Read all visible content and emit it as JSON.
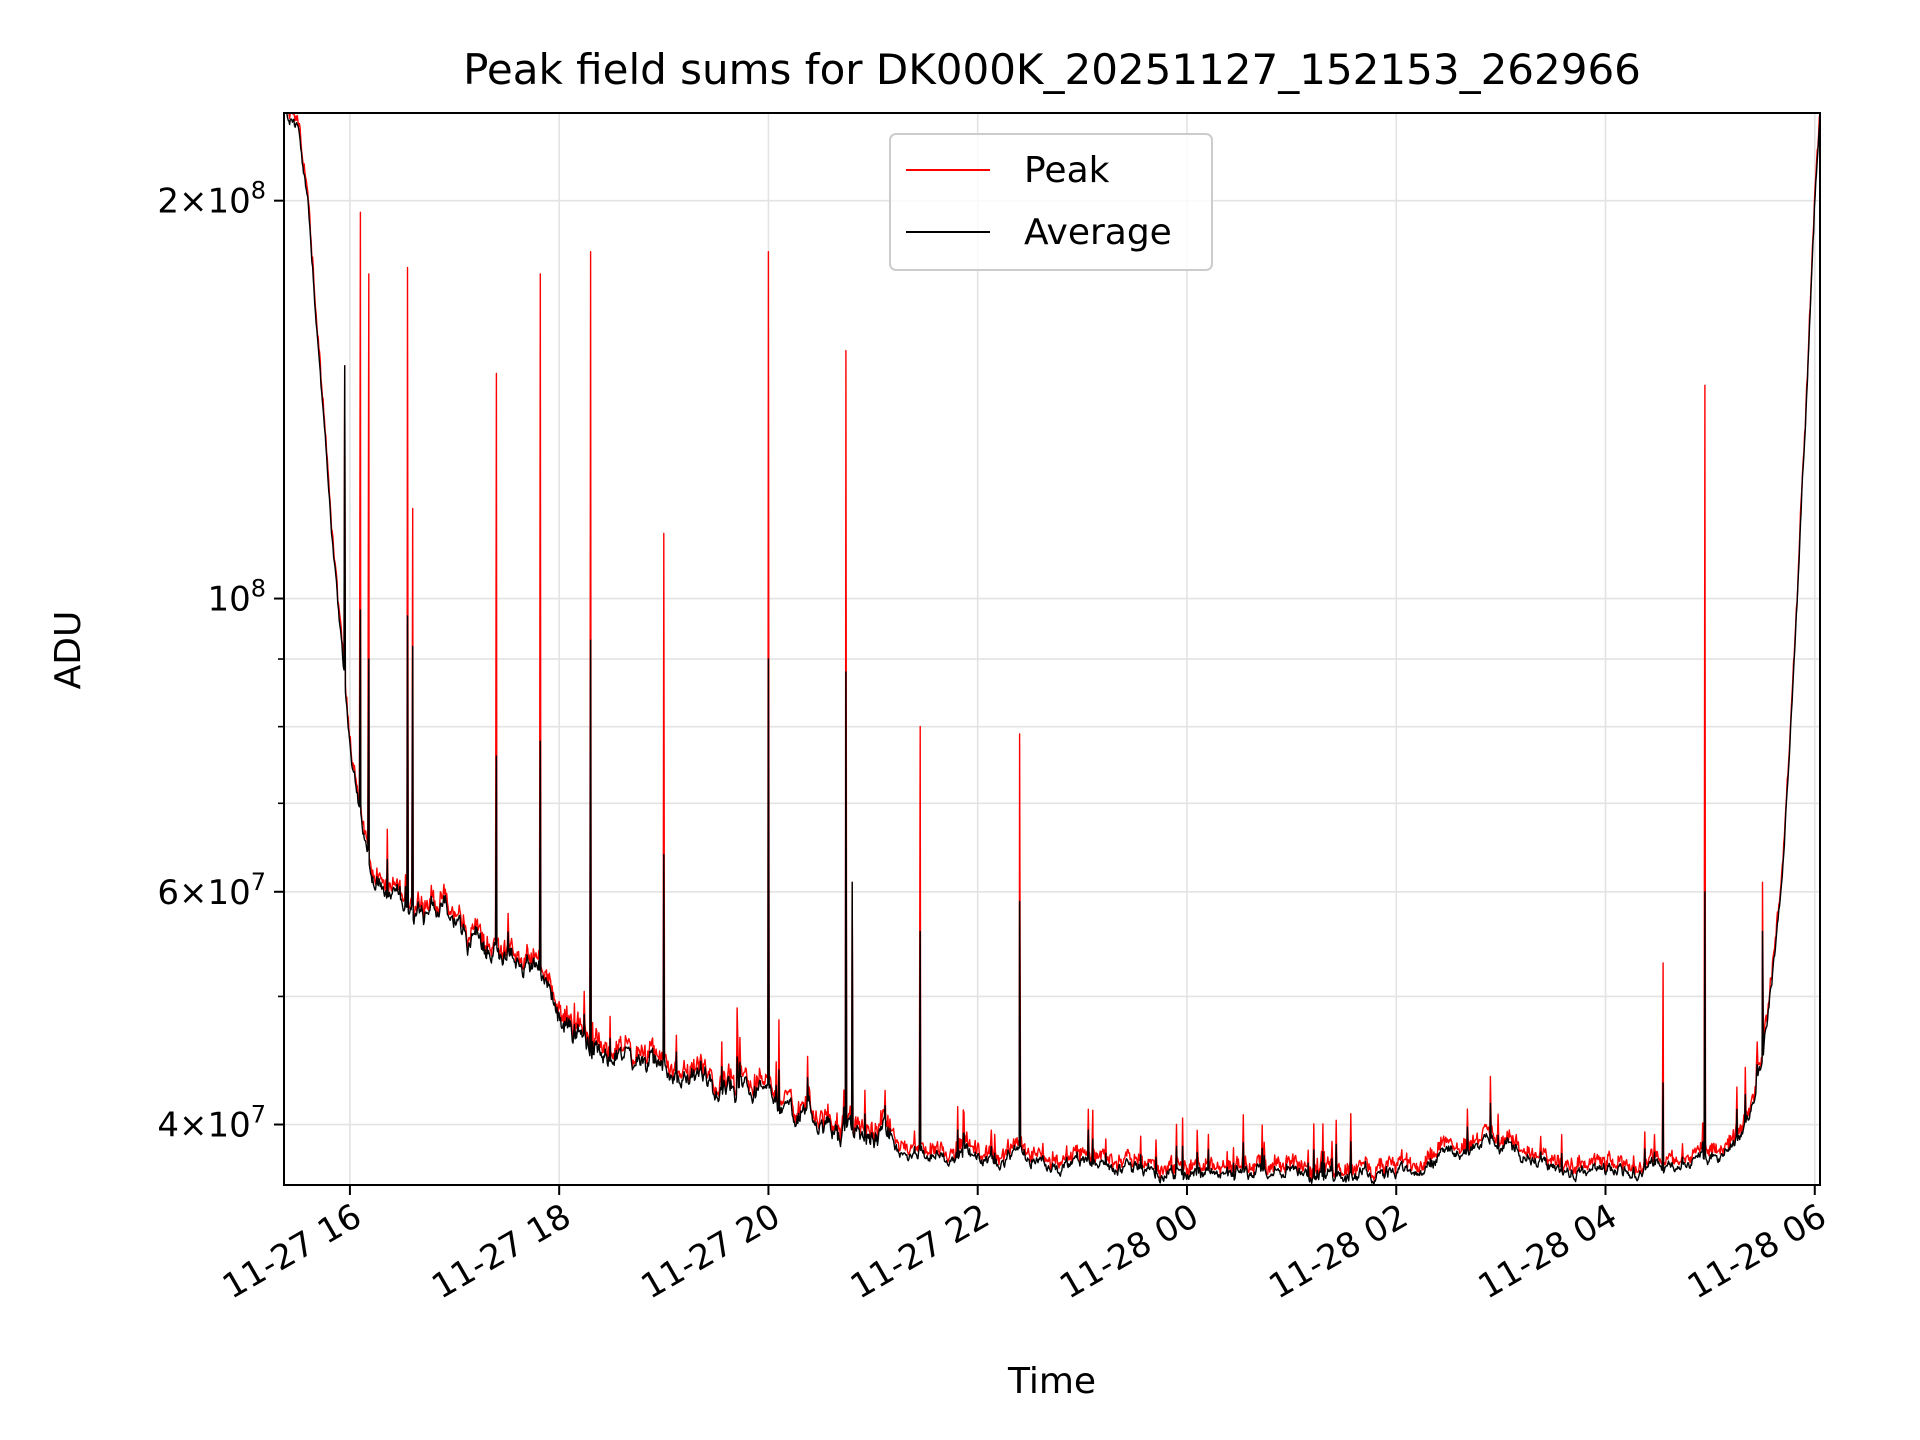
{
  "chart_data": {
    "type": "line",
    "title": "Peak field sums for DK000K_20251127_152153_262966",
    "xlabel": "Time",
    "ylabel": "ADU",
    "yscale": "log",
    "grid": true,
    "legend_position": "top-center",
    "xlim": [
      15.37,
      30.05
    ],
    "ylim": [
      36000000,
      233000000
    ],
    "x_ticks": [
      {
        "value": 16,
        "label": "11-27 16"
      },
      {
        "value": 18,
        "label": "11-27 18"
      },
      {
        "value": 20,
        "label": "11-27 20"
      },
      {
        "value": 22,
        "label": "11-27 22"
      },
      {
        "value": 24,
        "label": "11-28 00"
      },
      {
        "value": 26,
        "label": "11-28 02"
      },
      {
        "value": 28,
        "label": "11-28 04"
      },
      {
        "value": 30,
        "label": "11-28 06"
      }
    ],
    "y_ticks": [
      {
        "value": 40000000,
        "mant": "4",
        "exp": "7"
      },
      {
        "value": 60000000,
        "mant": "6",
        "exp": "7"
      },
      {
        "value": 100000000,
        "mant": "",
        "exp": "8"
      },
      {
        "value": 200000000,
        "mant": "2",
        "exp": "8"
      }
    ],
    "y_minor_ticks": [
      50000000,
      70000000,
      80000000,
      90000000
    ],
    "x_unit_note": "hours since 2025-11-27 00:00",
    "baseline": [
      [
        15.37,
        233000000
      ],
      [
        15.5,
        228000000
      ],
      [
        15.6,
        200000000
      ],
      [
        15.7,
        155000000
      ],
      [
        15.8,
        120000000
      ],
      [
        15.9,
        95000000
      ],
      [
        16.0,
        78000000
      ],
      [
        16.1,
        68000000
      ],
      [
        16.2,
        62000000
      ],
      [
        16.3,
        60000000
      ],
      [
        16.5,
        59000000
      ],
      [
        16.8,
        58500000
      ],
      [
        17.0,
        57000000
      ],
      [
        17.2,
        55000000
      ],
      [
        17.4,
        54000000
      ],
      [
        17.6,
        53000000
      ],
      [
        17.8,
        53000000
      ],
      [
        17.9,
        51500000
      ],
      [
        18.0,
        48000000
      ],
      [
        18.3,
        46000000
      ],
      [
        18.6,
        45000000
      ],
      [
        19.0,
        44000000
      ],
      [
        19.5,
        43000000
      ],
      [
        20.0,
        42000000
      ],
      [
        20.5,
        40500000
      ],
      [
        20.8,
        39500000
      ],
      [
        21.2,
        38500000
      ],
      [
        21.6,
        38000000
      ],
      [
        22.0,
        37700000
      ],
      [
        22.5,
        37600000
      ],
      [
        23.0,
        37300000
      ],
      [
        23.5,
        37000000
      ],
      [
        24.0,
        36900000
      ],
      [
        24.5,
        36800000
      ],
      [
        25.0,
        36800000
      ],
      [
        25.5,
        36700000
      ],
      [
        26.0,
        36900000
      ],
      [
        26.3,
        37500000
      ],
      [
        26.6,
        38300000
      ],
      [
        26.9,
        38700000
      ],
      [
        27.1,
        38500000
      ],
      [
        27.3,
        37600000
      ],
      [
        27.6,
        36700000
      ],
      [
        28.0,
        36700000
      ],
      [
        28.4,
        37100000
      ],
      [
        28.8,
        37400000
      ],
      [
        29.0,
        37600000
      ],
      [
        29.2,
        38000000
      ],
      [
        29.3,
        39500000
      ],
      [
        29.4,
        41500000
      ],
      [
        29.5,
        45000000
      ],
      [
        29.6,
        52000000
      ],
      [
        29.7,
        63000000
      ],
      [
        29.8,
        88000000
      ],
      [
        29.9,
        130000000
      ],
      [
        30.0,
        200000000
      ],
      [
        30.05,
        233000000
      ]
    ],
    "spikes": [
      {
        "x": 15.95,
        "peak": 150000000,
        "avg": 150000000
      },
      {
        "x": 16.1,
        "peak": 196000000,
        "avg": 98000000
      },
      {
        "x": 16.18,
        "peak": 176000000,
        "avg": 90000000
      },
      {
        "x": 16.55,
        "peak": 178000000,
        "avg": 97000000
      },
      {
        "x": 16.6,
        "peak": 117000000,
        "avg": 92000000
      },
      {
        "x": 17.4,
        "peak": 148000000,
        "avg": 76000000
      },
      {
        "x": 17.82,
        "peak": 176000000,
        "avg": 78000000
      },
      {
        "x": 18.3,
        "peak": 183000000,
        "avg": 93000000
      },
      {
        "x": 19.0,
        "peak": 112000000,
        "avg": 64000000
      },
      {
        "x": 19.7,
        "peak": 49000000,
        "avg": 45000000
      },
      {
        "x": 20.0,
        "peak": 183000000,
        "avg": 90000000
      },
      {
        "x": 20.1,
        "peak": 48000000,
        "avg": 44000000
      },
      {
        "x": 20.74,
        "peak": 154000000,
        "avg": 88000000
      },
      {
        "x": 20.8,
        "peak": 61000000,
        "avg": 61000000
      },
      {
        "x": 21.45,
        "peak": 80000000,
        "avg": 56000000
      },
      {
        "x": 22.4,
        "peak": 79000000,
        "avg": 59000000
      },
      {
        "x": 23.1,
        "peak": 41000000,
        "avg": 39000000
      },
      {
        "x": 23.9,
        "peak": 40000000,
        "avg": 38500000
      },
      {
        "x": 26.9,
        "peak": 43500000,
        "avg": 41500000
      },
      {
        "x": 28.55,
        "peak": 53000000,
        "avg": 43000000
      },
      {
        "x": 28.95,
        "peak": 145000000,
        "avg": 60000000
      },
      {
        "x": 29.5,
        "peak": 61000000,
        "avg": 56000000
      }
    ],
    "series": [
      {
        "name": "Peak",
        "color": "#ff0000"
      },
      {
        "name": "Average",
        "color": "#000000"
      }
    ]
  }
}
